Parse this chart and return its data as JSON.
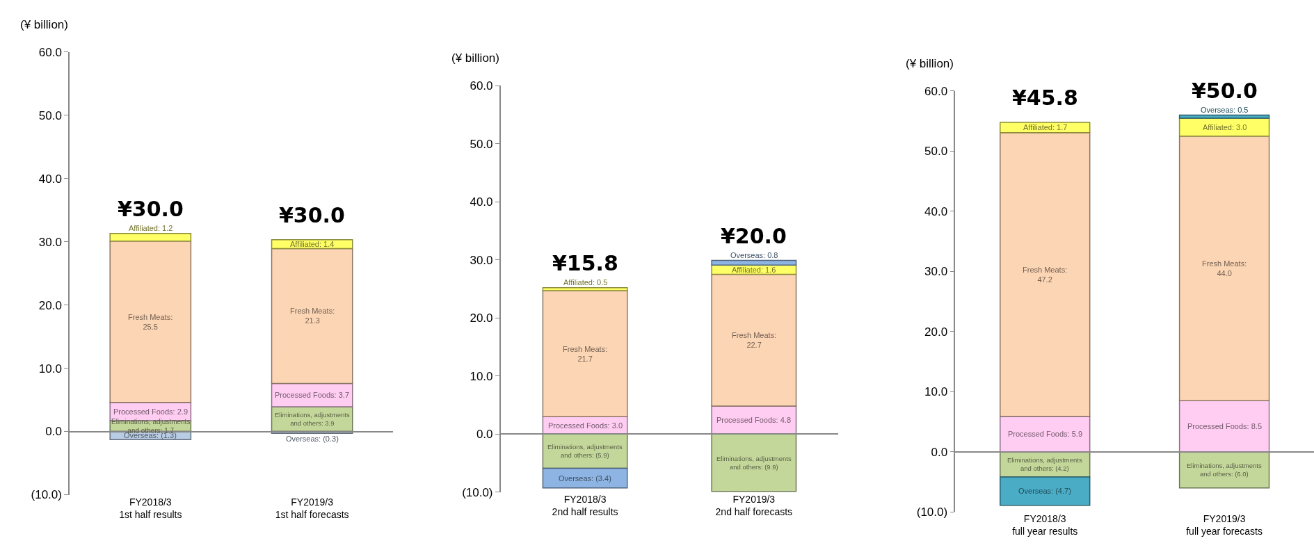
{
  "chart_data": [
    {
      "type": "bar",
      "stacked": true,
      "ylabel": "(¥ billion)",
      "categories": [
        "FY2018/3\n1st half results",
        "FY2019/3\n1st half forecasts"
      ],
      "ylim": [
        -10,
        60
      ],
      "yticks": [
        {
          "value": -10,
          "label": "(10.0)"
        },
        {
          "value": 0,
          "label": "0.0"
        },
        {
          "value": 10,
          "label": "10.0"
        },
        {
          "value": 20,
          "label": "20.0"
        },
        {
          "value": 30,
          "label": "30.0"
        },
        {
          "value": 40,
          "label": "40.0"
        },
        {
          "value": 50,
          "label": "50.0"
        },
        {
          "value": 60,
          "label": "60.0"
        }
      ],
      "totals": [
        "¥30.0",
        "¥30.0"
      ],
      "series": [
        {
          "color": "#c4d79b",
          "values": [
            1.7,
            3.9
          ],
          "value_labels": [
            "Eliminations, adjustments\nand others: 1.7",
            "Eliminations, adjustments\nand others: 3.9"
          ]
        },
        {
          "color": "#ffccf2",
          "values": [
            2.9,
            3.7
          ],
          "value_labels": [
            "Processed Foods: 2.9",
            "Processed Foods: 3.7"
          ]
        },
        {
          "color": "#fcd5b4",
          "values": [
            25.5,
            21.3
          ],
          "value_labels": [
            "Fresh Meats:\n25.5",
            "Fresh Meats:\n21.3"
          ]
        },
        {
          "color": "#ffff66",
          "values": [
            1.2,
            1.4
          ],
          "value_labels": [
            "Affiliated: 1.2",
            "Affiliated: 1.4"
          ]
        },
        {
          "color": "#b8cce4",
          "values": [
            -1.3,
            -0.3
          ],
          "value_labels": [
            "Overseas: (1.3)",
            "Overseas: (0.3)"
          ]
        }
      ]
    },
    {
      "type": "bar",
      "stacked": true,
      "ylabel": "(¥ billion)",
      "categories": [
        "FY2018/3\n2nd half results",
        "FY2019/3\n2nd half forecasts"
      ],
      "ylim": [
        -10,
        60
      ],
      "yticks": [
        {
          "value": -10,
          "label": "(10.0)"
        },
        {
          "value": 0,
          "label": "0.0"
        },
        {
          "value": 10,
          "label": "10.0"
        },
        {
          "value": 20,
          "label": "20.0"
        },
        {
          "value": 30,
          "label": "30.0"
        },
        {
          "value": 40,
          "label": "40.0"
        },
        {
          "value": 50,
          "label": "50.0"
        },
        {
          "value": 60,
          "label": "60.0"
        }
      ],
      "totals": [
        "¥15.8",
        "¥20.0"
      ],
      "series": [
        {
          "color": "#c4d79b",
          "values": [
            -5.9,
            -9.9
          ],
          "value_labels": [
            "Eliminations, adjustments\nand others: (5.9)",
            "Eliminations, adjustments\nand others: (9.9)"
          ]
        },
        {
          "color": "#ffccf2",
          "values": [
            3.0,
            4.8
          ],
          "value_labels": [
            "Processed Foods: 3.0",
            "Processed Foods: 4.8"
          ]
        },
        {
          "color": "#fcd5b4",
          "values": [
            21.7,
            22.7
          ],
          "value_labels": [
            "Fresh Meats:\n21.7",
            "Fresh Meats:\n22.7"
          ]
        },
        {
          "color": "#ffff66",
          "values": [
            0.5,
            1.6
          ],
          "value_labels": [
            "Affiliated: 0.5",
            "Affiliated: 1.6"
          ]
        },
        {
          "color": "#8db4e2",
          "values": [
            -3.4,
            0.8
          ],
          "value_labels": [
            "Overseas: (3.4)",
            "Overseas: 0.8"
          ]
        }
      ]
    },
    {
      "type": "bar",
      "stacked": true,
      "ylabel": "(¥ billion)",
      "categories": [
        "FY2018/3\nfull year results",
        "FY2019/3\nfull year forecasts"
      ],
      "ylim": [
        -10,
        60
      ],
      "yticks": [
        {
          "value": -10,
          "label": "(10.0)"
        },
        {
          "value": 0,
          "label": "0.0"
        },
        {
          "value": 10,
          "label": "10.0"
        },
        {
          "value": 20,
          "label": "20.0"
        },
        {
          "value": 30,
          "label": "30.0"
        },
        {
          "value": 40,
          "label": "40.0"
        },
        {
          "value": 50,
          "label": "50.0"
        },
        {
          "value": 60,
          "label": "60.0"
        }
      ],
      "totals": [
        "¥45.8",
        "¥50.0"
      ],
      "series": [
        {
          "color": "#c4d79b",
          "values": [
            -4.2,
            -6.0
          ],
          "value_labels": [
            "Eliminations, adjustments\nand others: (4.2)",
            "Eliminations, adjustments\nand others: (6.0)"
          ]
        },
        {
          "color": "#ffccf2",
          "values": [
            5.9,
            8.5
          ],
          "value_labels": [
            "Processed Foods: 5.9",
            "Processed Foods: 8.5"
          ]
        },
        {
          "color": "#fcd5b4",
          "values": [
            47.2,
            44.0
          ],
          "value_labels": [
            "Fresh Meats:\n47.2",
            "Fresh Meats:\n44.0"
          ]
        },
        {
          "color": "#ffff66",
          "values": [
            1.7,
            3.0
          ],
          "value_labels": [
            "Affiliated: 1.7",
            "Affiliated: 3.0"
          ]
        },
        {
          "color": "#4bacc6",
          "values": [
            -4.7,
            0.5
          ],
          "value_labels": [
            "Overseas: (4.7)",
            "Overseas: 0.5"
          ]
        }
      ]
    }
  ]
}
